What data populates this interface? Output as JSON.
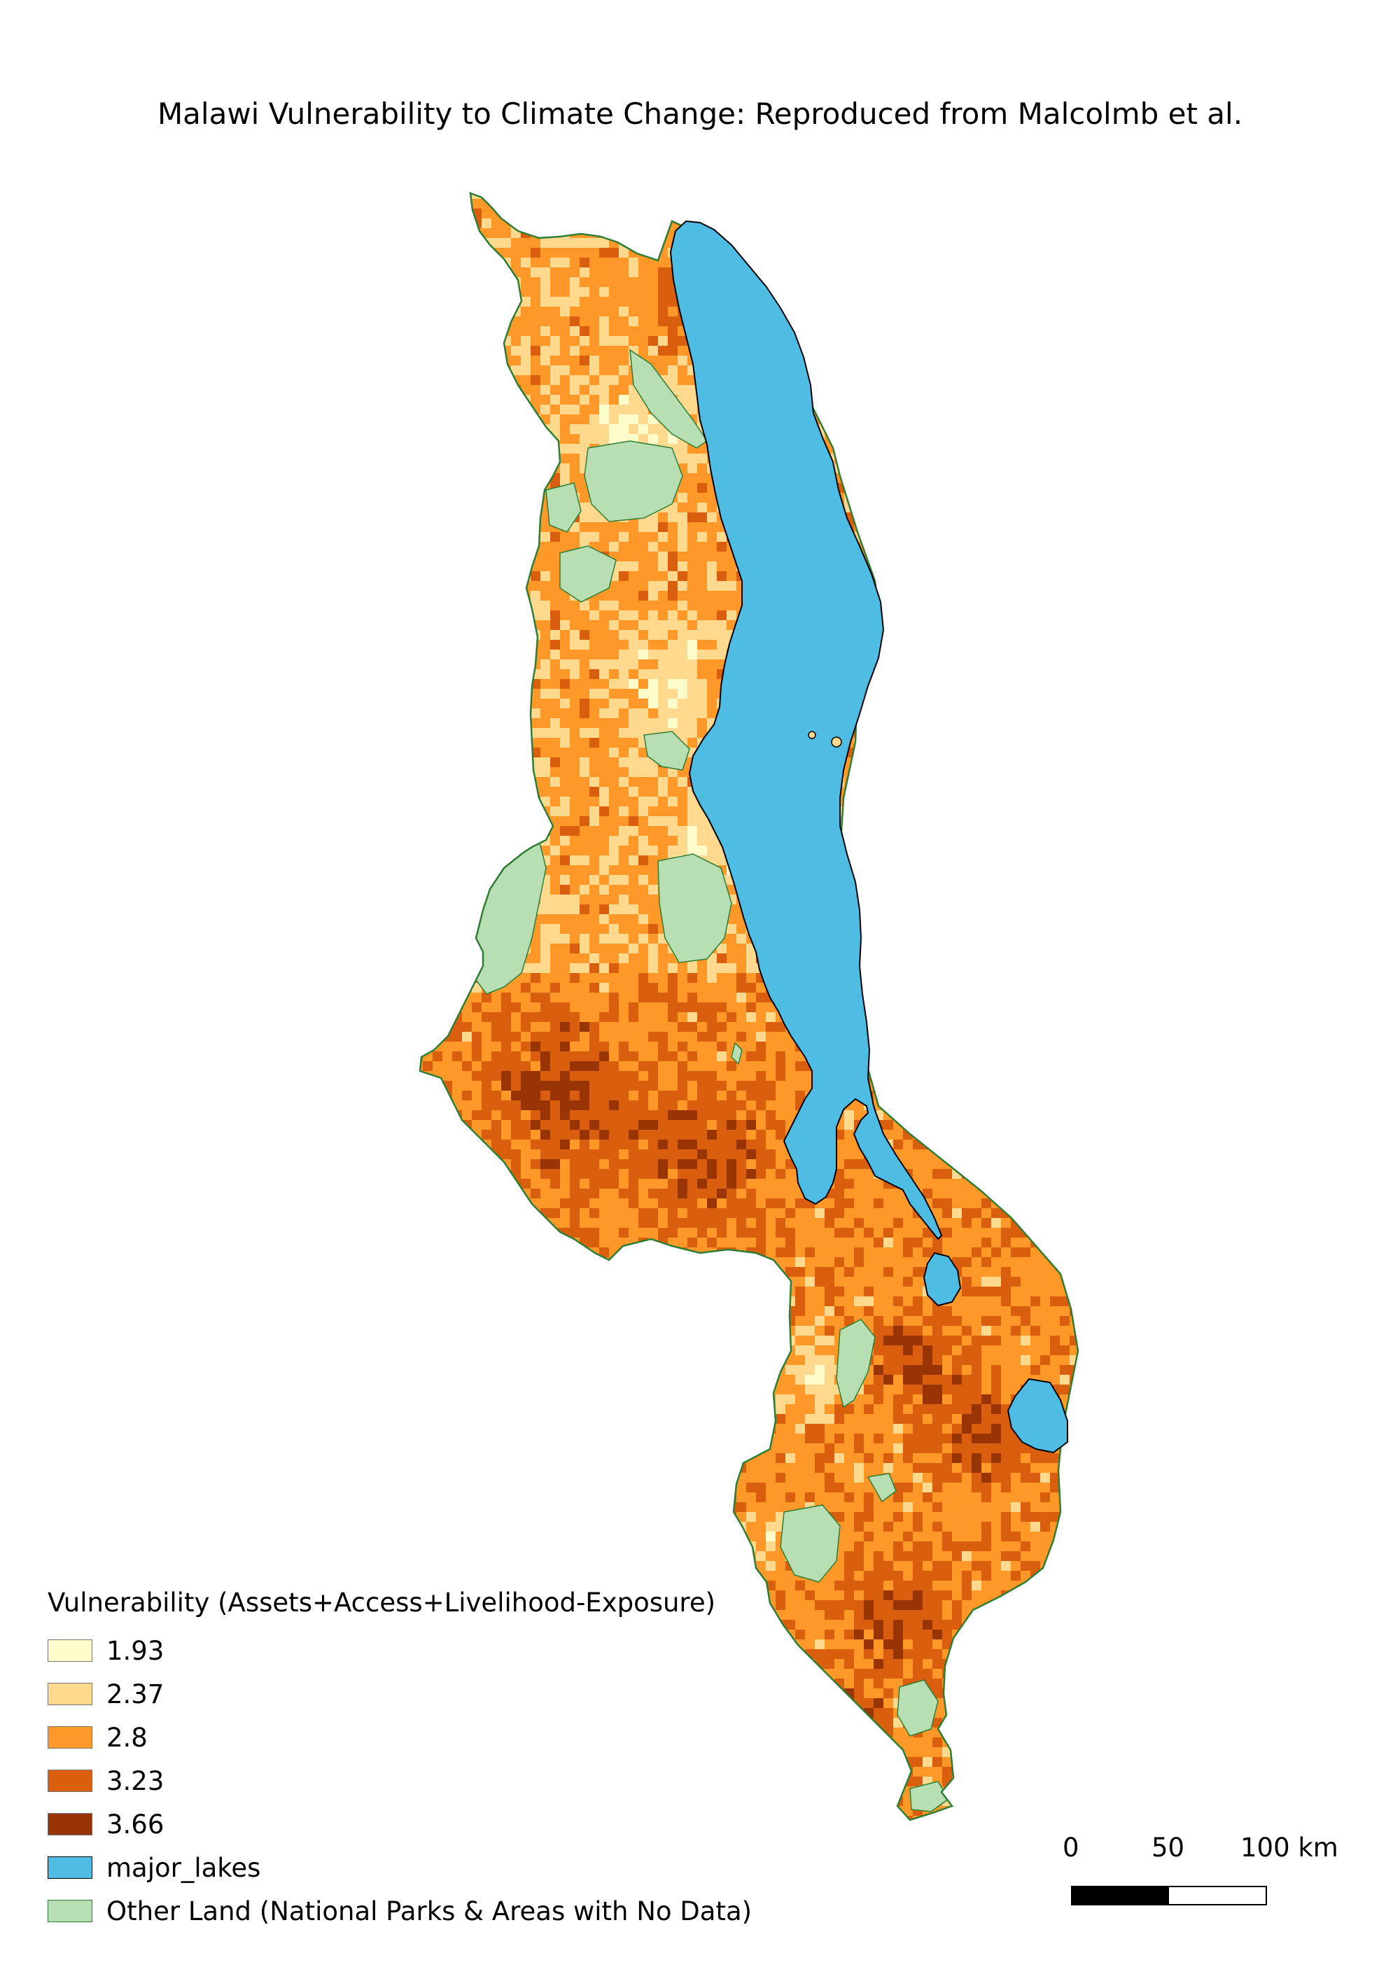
{
  "title": "Malawi Vulnerability to Climate Change: Reproduced from Malcolmb et al.",
  "legend": {
    "title": "Vulnerability (Assets+Access+Livelihood-Exposure)",
    "items": [
      {
        "label": "1.93",
        "color": "#fffccc"
      },
      {
        "label": "2.37",
        "color": "#fed98e"
      },
      {
        "label": "2.8",
        "color": "#fe9929"
      },
      {
        "label": "3.23",
        "color": "#d95f0e"
      },
      {
        "label": "3.66",
        "color": "#993404"
      },
      {
        "label": "major_lakes",
        "color": "#4fbde3"
      },
      {
        "label": "Other Land (National Parks & Areas with No Data)",
        "color": "#b8deb4"
      }
    ]
  },
  "scale_bar": {
    "ticks": [
      "0",
      "50",
      "100 km"
    ],
    "segment_colors": [
      "#000000",
      "#ffffff"
    ]
  },
  "colors": {
    "lake": "#4fbde3",
    "other_land": "#b8deb4",
    "boundary": "#2e7d32",
    "lake_outline": "#000000"
  }
}
